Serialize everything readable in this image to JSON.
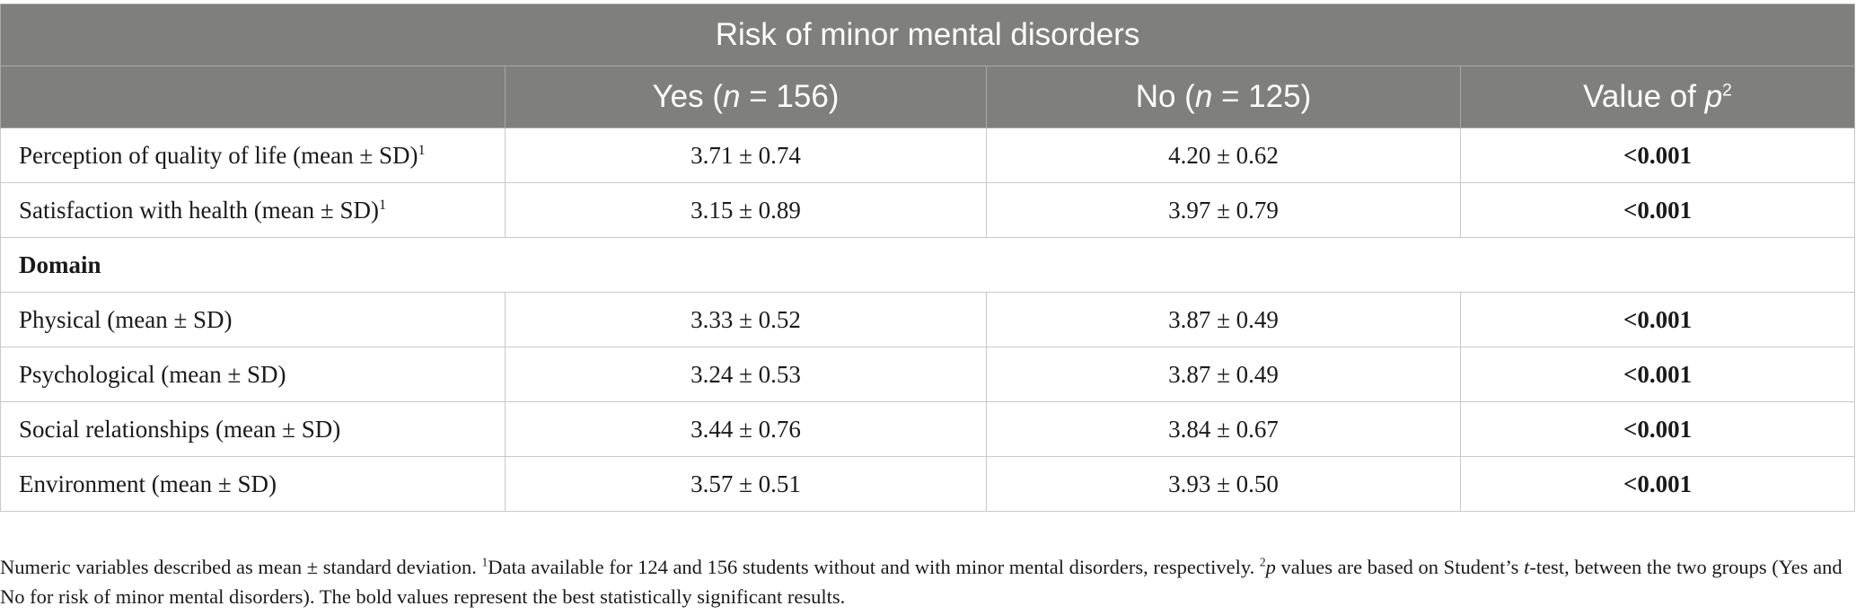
{
  "table": {
    "title": "Risk of minor mental disorders",
    "columns": {
      "c1": {
        "pre": "Yes (",
        "italic": "n",
        "post": " = 156)"
      },
      "c2": {
        "pre": "No (",
        "italic": "n",
        "post": " = 125)"
      },
      "c3": {
        "pre": "Value of ",
        "italic": "p",
        "sup": "2"
      }
    },
    "rows": [
      {
        "label": "Perception of quality of life (mean ± SD)",
        "sup": "1",
        "yes": "3.71 ± 0.74",
        "no": "4.20 ± 0.62",
        "p": "<0.001"
      },
      {
        "label": "Satisfaction with health (mean ± SD)",
        "sup": "1",
        "yes": "3.15 ± 0.89",
        "no": "3.97 ± 0.79",
        "p": "<0.001"
      },
      {
        "section": "Domain"
      },
      {
        "label": "Physical (mean ± SD)",
        "yes": "3.33 ± 0.52",
        "no": "3.87 ± 0.49",
        "p": "<0.001"
      },
      {
        "label": "Psychological (mean ± SD)",
        "yes": "3.24 ± 0.53",
        "no": "3.87 ± 0.49",
        "p": "<0.001"
      },
      {
        "label": "Social relationships (mean ± SD)",
        "yes": "3.44 ± 0.76",
        "no": "3.84 ± 0.67",
        "p": "<0.001"
      },
      {
        "label": "Environment (mean ± SD)",
        "yes": "3.57 ± 0.51",
        "no": "3.93 ± 0.50",
        "p": "<0.001"
      }
    ]
  },
  "footnote": {
    "part1": "Numeric variables described as mean ± standard deviation. ",
    "sup1": "1",
    "part2": "Data available for 124 and 156 students without and with minor mental disorders, respectively. ",
    "sup2": "2",
    "p_italic": "p",
    "part3": " values are based on Student’s ",
    "t_italic": "t",
    "part4": "-test, between the two groups (Yes and No for risk of minor mental disorders). The bold values represent the best statistically significant results."
  }
}
